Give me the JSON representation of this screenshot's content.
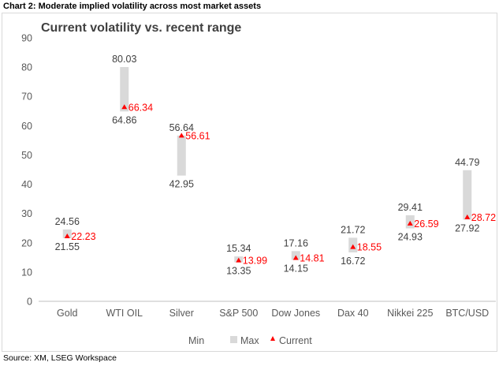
{
  "header": {
    "title": "Chart 2: Moderate implied volatility across most market assets"
  },
  "footer": {
    "source": "Source: XM, LSEG Workspace"
  },
  "chart_data": {
    "type": "range-marker",
    "title": "Current volatility vs. recent range",
    "ylim": [
      0,
      90
    ],
    "yticks": [
      0,
      10,
      20,
      30,
      40,
      50,
      60,
      70,
      80,
      90
    ],
    "grid": false,
    "legend_position": "bottom",
    "legend": [
      "Min",
      "Max",
      "Current"
    ],
    "colors": {
      "range_bar": "#d9d9d9",
      "current_marker": "#ff0000",
      "text": "#404040"
    },
    "categories": [
      "Gold",
      "WTI OIL",
      "Silver",
      "S&P 500",
      "Dow Jones",
      "Dax 40",
      "Nikkei 225",
      "BTC/USD"
    ],
    "series": [
      {
        "name": "Min",
        "values": [
          21.55,
          64.86,
          42.95,
          13.35,
          14.15,
          16.72,
          24.93,
          27.92
        ]
      },
      {
        "name": "Max",
        "values": [
          24.56,
          80.03,
          56.64,
          15.34,
          17.16,
          21.72,
          29.41,
          44.79
        ]
      },
      {
        "name": "Current",
        "values": [
          22.23,
          66.34,
          56.61,
          13.99,
          14.81,
          18.55,
          26.59,
          28.72
        ]
      }
    ]
  }
}
